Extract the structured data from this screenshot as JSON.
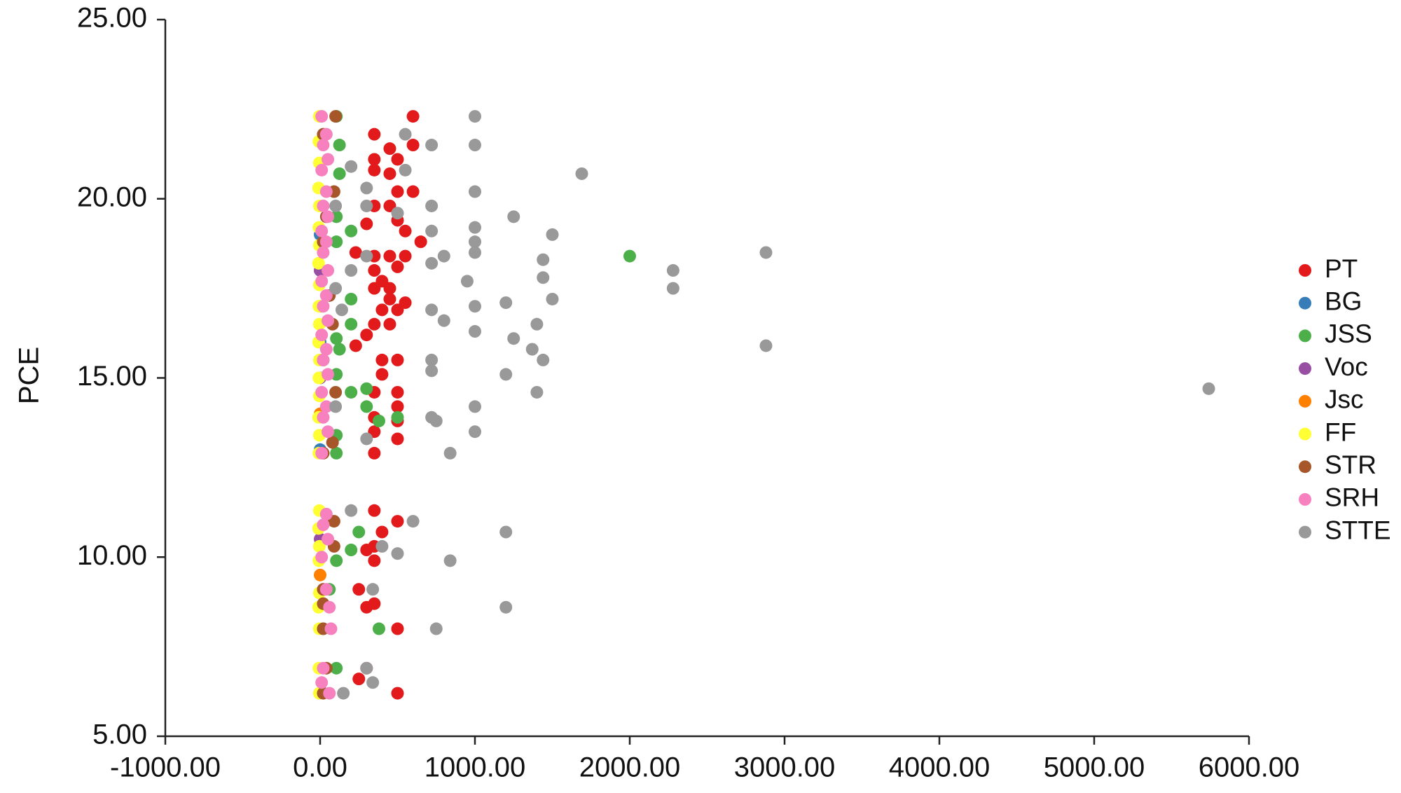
{
  "chart_data": {
    "type": "scatter",
    "y_label": "PCE",
    "xlim": [
      -1000,
      6000
    ],
    "ylim": [
      5,
      25
    ],
    "xticks": [
      {
        "value": -1000,
        "label": "-1000.00"
      },
      {
        "value": 0,
        "label": "0.00"
      },
      {
        "value": 1000,
        "label": "1000.00"
      },
      {
        "value": 2000,
        "label": "2000.00"
      },
      {
        "value": 3000,
        "label": "3000.00"
      },
      {
        "value": 4000,
        "label": "4000.00"
      },
      {
        "value": 5000,
        "label": "5000.00"
      },
      {
        "value": 6000,
        "label": "6000.00"
      }
    ],
    "yticks": [
      {
        "value": 5,
        "label": "5.00"
      },
      {
        "value": 10,
        "label": "10.00"
      },
      {
        "value": 15,
        "label": "15.00"
      },
      {
        "value": 20,
        "label": "20.00"
      },
      {
        "value": 25,
        "label": "25.00"
      }
    ],
    "grid": false,
    "legend": "right",
    "series": [
      {
        "name": "PT",
        "color": "#e31a1c",
        "x": [
          600,
          350,
          450,
          600,
          350,
          500,
          450,
          350,
          500,
          600,
          350,
          450,
          300,
          500,
          550,
          650,
          230,
          350,
          450,
          550,
          350,
          500,
          400,
          450,
          350,
          450,
          550,
          400,
          500,
          350,
          450,
          300,
          230,
          400,
          500,
          400,
          350,
          500,
          500,
          350,
          500,
          350,
          500,
          350,
          350,
          500,
          400,
          350,
          300,
          350,
          250,
          300,
          350,
          500,
          250,
          300,
          500
        ],
        "values": [
          22.3,
          21.8,
          21.4,
          21.5,
          21.1,
          21.1,
          20.7,
          20.8,
          20.2,
          20.2,
          19.8,
          19.8,
          19.3,
          19.4,
          19.1,
          18.8,
          18.5,
          18.4,
          18.4,
          18.4,
          18.0,
          18.1,
          17.7,
          17.5,
          17.5,
          17.2,
          17.1,
          16.9,
          16.9,
          16.5,
          16.5,
          16.2,
          15.9,
          15.5,
          15.5,
          15.1,
          14.6,
          14.6,
          14.2,
          13.9,
          13.8,
          13.5,
          13.3,
          12.9,
          11.3,
          11.0,
          10.7,
          10.3,
          10.2,
          9.9,
          9.1,
          8.6,
          8.7,
          8.0,
          6.6,
          6.9,
          6.2
        ]
      },
      {
        "name": "BG",
        "color": "#377eb8",
        "x": [
          0,
          0,
          0
        ],
        "values": [
          19.0,
          16.0,
          13.0
        ]
      },
      {
        "name": "JSS",
        "color": "#4daf4a",
        "x": [
          2000,
          105,
          125,
          125,
          105,
          200,
          105,
          200,
          105,
          125,
          200,
          105,
          200,
          300,
          300,
          380,
          500,
          105,
          105,
          250,
          200,
          105,
          380,
          105,
          60
        ],
        "values": [
          18.4,
          22.3,
          21.5,
          20.7,
          19.5,
          19.1,
          18.8,
          17.2,
          16.1,
          15.8,
          16.5,
          15.1,
          14.6,
          14.7,
          14.2,
          13.8,
          13.9,
          13.4,
          12.9,
          10.7,
          10.2,
          9.9,
          8.0,
          6.9,
          9.1
        ]
      },
      {
        "name": "Voc",
        "color": "#984ea3",
        "x": [
          0,
          0,
          0
        ],
        "values": [
          18.0,
          15.0,
          10.5
        ]
      },
      {
        "name": "Jsc",
        "color": "#ff7f00",
        "x": [
          0,
          0,
          0
        ],
        "values": [
          17.0,
          14.0,
          9.5
        ]
      },
      {
        "name": "FF",
        "color": "#ffff33",
        "x": [
          -5,
          -8,
          -5,
          -10,
          -5,
          -8,
          -5,
          -10,
          -5,
          -8,
          -5,
          -10,
          -5,
          -8,
          -5,
          -10,
          -5,
          -8,
          -5,
          -10,
          -5,
          -8,
          -5,
          -10,
          -5,
          -8,
          -5
        ],
        "values": [
          22.3,
          21.6,
          21.0,
          20.3,
          19.8,
          19.2,
          18.7,
          18.2,
          17.6,
          17.0,
          16.5,
          16.0,
          15.5,
          15.0,
          14.5,
          13.9,
          13.4,
          12.9,
          11.3,
          10.8,
          10.3,
          9.9,
          9.0,
          8.6,
          8.0,
          6.9,
          6.2
        ]
      },
      {
        "name": "STR",
        "color": "#a65628",
        "x": [
          100,
          20,
          90,
          40,
          20,
          60,
          80,
          20,
          100,
          80,
          20,
          90,
          90,
          20,
          20,
          20,
          20,
          40
        ],
        "values": [
          22.3,
          21.8,
          20.2,
          19.5,
          18.8,
          17.3,
          16.5,
          15.5,
          14.6,
          13.2,
          12.9,
          11.0,
          10.3,
          9.1,
          8.7,
          8.0,
          6.2,
          6.9
        ]
      },
      {
        "name": "SRH",
        "color": "#f781bf",
        "x": [
          10,
          40,
          20,
          50,
          10,
          40,
          20,
          50,
          10,
          40,
          20,
          50,
          10,
          40,
          20,
          50,
          10,
          40,
          20,
          50,
          10,
          40,
          20,
          50,
          10,
          40,
          20,
          50,
          10,
          40,
          60,
          70,
          20,
          10,
          60
        ],
        "values": [
          22.3,
          21.8,
          21.5,
          21.1,
          20.8,
          20.2,
          19.8,
          19.5,
          19.1,
          18.8,
          18.5,
          18.0,
          17.7,
          17.3,
          17.0,
          16.6,
          16.2,
          15.8,
          15.5,
          15.1,
          14.6,
          14.2,
          13.9,
          13.5,
          12.9,
          11.2,
          10.9,
          10.5,
          10.0,
          9.1,
          8.6,
          8.0,
          6.9,
          6.5,
          6.2
        ]
      },
      {
        "name": "STTE",
        "color": "#999999",
        "x": [
          1000,
          550,
          720,
          1000,
          1690,
          200,
          550,
          300,
          1000,
          300,
          500,
          720,
          1250,
          1000,
          720,
          1500,
          1000,
          800,
          300,
          200,
          720,
          1000,
          1440,
          1440,
          2280,
          2880,
          2280,
          950,
          1200,
          1500,
          1000,
          720,
          800,
          1400,
          1000,
          1250,
          2880,
          1370,
          1440,
          720,
          720,
          1200,
          1400,
          5740,
          1000,
          720,
          750,
          1000,
          300,
          840,
          200,
          600,
          400,
          500,
          1200,
          840,
          340,
          1200,
          750,
          300,
          340,
          150,
          100,
          100,
          100,
          140
        ],
        "values": [
          22.3,
          21.8,
          21.5,
          21.5,
          20.7,
          20.9,
          20.8,
          20.3,
          20.2,
          19.8,
          19.6,
          19.8,
          19.5,
          19.2,
          19.1,
          19.0,
          18.8,
          18.4,
          18.4,
          18.0,
          18.2,
          18.5,
          18.3,
          17.8,
          18.0,
          18.5,
          17.5,
          17.7,
          17.1,
          17.2,
          17.0,
          16.9,
          16.6,
          16.5,
          16.3,
          16.1,
          15.9,
          15.8,
          15.5,
          15.5,
          15.2,
          15.1,
          14.6,
          14.7,
          14.2,
          13.9,
          13.8,
          13.5,
          13.3,
          12.9,
          11.3,
          11.0,
          10.3,
          10.1,
          10.7,
          9.9,
          9.1,
          8.6,
          8.0,
          6.9,
          6.5,
          6.2,
          19.8,
          17.5,
          14.2,
          16.9
        ]
      }
    ]
  }
}
